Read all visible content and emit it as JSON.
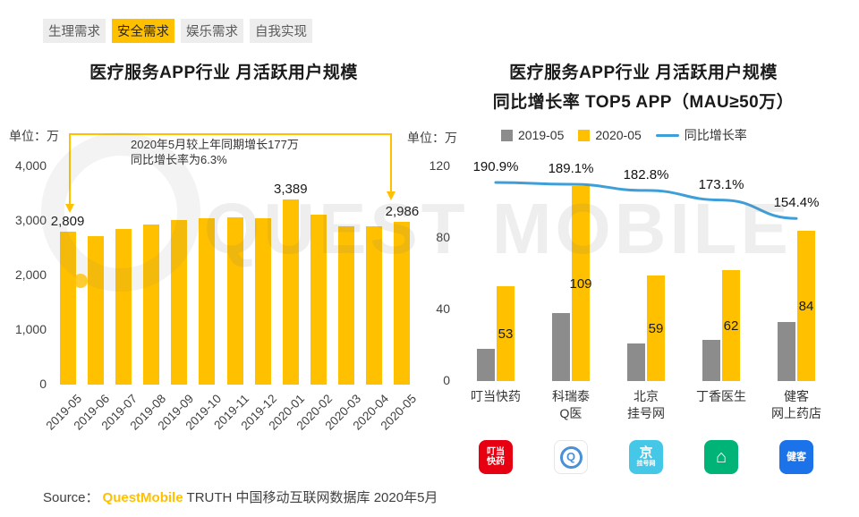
{
  "tabs": [
    {
      "id": "physiological-needs",
      "label": "生理需求",
      "active": false
    },
    {
      "id": "safety-needs",
      "label": "安全需求",
      "active": true
    },
    {
      "id": "entertainment-needs",
      "label": "娱乐需求",
      "active": false
    },
    {
      "id": "self-actualization",
      "label": "自我实现",
      "active": false
    }
  ],
  "watermark": {
    "text": "QUEST MOBILE"
  },
  "left_chart": {
    "title": "医疗服务APP行业 月活跃用户规模",
    "unit_label": "单位：万",
    "annotation_line1": "2020年5月较上年同期增长177万",
    "annotation_line2": "同比增长率为6.3%"
  },
  "right_chart": {
    "title_line1": "医疗服务APP行业 月活跃用户规模",
    "title_line2": "同比增长率 TOP5 APP（MAU≥50万）",
    "unit_label": "单位：万",
    "legend": [
      {
        "label": "2019-05",
        "swatch": "gray-square",
        "color": "#8C8C8C"
      },
      {
        "label": "2020-05",
        "swatch": "yellow-square",
        "color": "#FFC000"
      },
      {
        "label": "同比增长率",
        "swatch": "blue-line",
        "color": "#3E9FD8"
      }
    ]
  },
  "apps": [
    {
      "id": "dingdang-kuaiyao",
      "name": "叮当快药",
      "label_lines": [
        "叮当快药"
      ],
      "icon": {
        "type": "text",
        "bg": "#E60012",
        "fg": "#FFFFFF",
        "glyph_lines": [
          "叮当",
          "快药"
        ],
        "glyph_sizes": [
          10,
          10
        ]
      }
    },
    {
      "id": "keruitai-qyi",
      "name": "科瑞泰Q医",
      "label_lines": [
        "科瑞泰",
        "Q医"
      ],
      "icon": {
        "type": "circle-letter",
        "bg": "#FFFFFF",
        "fg": "#4A90D9",
        "glyph_lines": [
          "Q"
        ],
        "glyph_sizes": [
          13
        ]
      }
    },
    {
      "id": "beijing-guahao",
      "name": "北京挂号网",
      "label_lines": [
        "北京",
        "挂号网"
      ],
      "icon": {
        "type": "text",
        "bg": "#45C8E8",
        "fg": "#FFFFFF",
        "glyph_lines": [
          "京",
          "挂号网"
        ],
        "glyph_sizes": [
          15,
          7
        ]
      }
    },
    {
      "id": "dingxiang-doctor",
      "name": "丁香医生",
      "label_lines": [
        "丁香医生"
      ],
      "icon": {
        "type": "text",
        "bg": "#00B377",
        "fg": "#FFFFFF",
        "glyph_lines": [
          "⌂"
        ],
        "glyph_sizes": [
          20
        ]
      }
    },
    {
      "id": "jianke",
      "name": "健客网上药店",
      "label_lines": [
        "健客",
        "网上药店"
      ],
      "icon": {
        "type": "text",
        "bg": "#1C72E8",
        "fg": "#FFFFFF",
        "glyph_lines": [
          "健客"
        ],
        "glyph_sizes": [
          11
        ]
      }
    }
  ],
  "source": {
    "prefix": "Source：",
    "brand": "QuestMobile",
    "suffix": "TRUTH 中国移动互联网数据库 2020年5月"
  },
  "colors": {
    "accent_yellow": "#FFC000",
    "bar_yellow": "#FFC000",
    "bar_gray": "#8C8C8C",
    "line_blue": "#3E9FD8"
  },
  "chart_data": [
    {
      "type": "bar",
      "title": "医疗服务APP行业 月活跃用户规模",
      "unit": "万",
      "categories": [
        "2019-05",
        "2019-06",
        "2019-07",
        "2019-08",
        "2019-09",
        "2019-10",
        "2019-11",
        "2019-12",
        "2020-01",
        "2020-02",
        "2020-03",
        "2020-04",
        "2020-05"
      ],
      "values": [
        2809,
        2720,
        2850,
        2930,
        3010,
        3050,
        3060,
        3050,
        3389,
        3110,
        2900,
        2910,
        2986
      ],
      "point_labels": [
        {
          "index": 0,
          "text": "2,809"
        },
        {
          "index": 8,
          "text": "3,389"
        },
        {
          "index": 12,
          "text": "2,986"
        }
      ],
      "ylim": [
        0,
        4000
      ],
      "yticks": [
        "4,000",
        "3,000",
        "2,000",
        "1,000",
        "0"
      ],
      "grid": false,
      "bar_color": "#FFC000",
      "annotation": "2020年5月较上年同期增长177万，同比增长率为6.3%"
    },
    {
      "type": "bar+line",
      "title": "医疗服务APP行业 月活跃用户规模同比增长率 TOP5 APP（MAU≥50万）",
      "unit": "万",
      "categories": [
        "叮当快药",
        "科瑞泰Q医",
        "北京挂号网",
        "丁香医生",
        "健客网上药店"
      ],
      "series": [
        {
          "name": "2019-05",
          "color": "#8C8C8C",
          "values": [
            18,
            38,
            21,
            23,
            33
          ]
        },
        {
          "name": "2020-05",
          "color": "#FFC000",
          "values": [
            53,
            109,
            59,
            62,
            84
          ],
          "labels": [
            "53",
            "109",
            "59",
            "62",
            "84"
          ]
        }
      ],
      "line_series": {
        "name": "同比增长率",
        "color": "#3E9FD8",
        "values_pct": [
          190.9,
          189.1,
          182.8,
          173.1,
          154.4
        ],
        "labels": [
          "190.9%",
          "189.1%",
          "182.8%",
          "173.1%",
          "154.4%"
        ]
      },
      "ylim": [
        0,
        120
      ],
      "yticks": [
        "120",
        "80",
        "40",
        "0"
      ],
      "grid": false,
      "legend_position": "top"
    }
  ]
}
